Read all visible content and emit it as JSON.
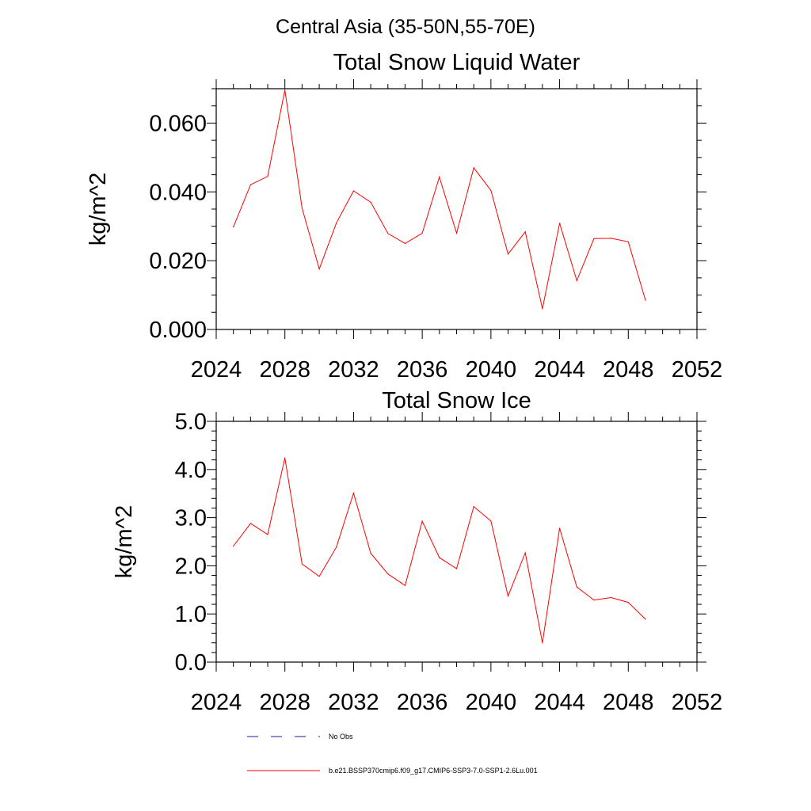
{
  "figure_title": "Central Asia (35-50N,55-70E)",
  "colors": {
    "model": "#ff0000",
    "obs": "#1a1aa0",
    "axes": "#000000"
  },
  "legend": {
    "obs_label": "No Obs",
    "model_label": "b.e21.BSSP370cmip6.f09_g17.CMIP6-SSP3-7.0-SSP1-2.6Lu.001"
  },
  "chart_data": [
    {
      "type": "line",
      "title": "Total Snow Liquid Water",
      "xlabel": "",
      "ylabel": "kg/m^2",
      "xlim": [
        2024,
        2052
      ],
      "ylim": [
        0,
        0.07
      ],
      "xticks": [
        "2024",
        "2028",
        "2032",
        "2036",
        "2040",
        "2044",
        "2048",
        "2052"
      ],
      "yticks": [
        "0.000",
        "0.020",
        "0.040",
        "0.060"
      ],
      "grid": false,
      "series": [
        {
          "name": "b.e21.BSSP370cmip6.f09_g17.CMIP6-SSP3-7.0-SSP1-2.6Lu.001",
          "x": [
            2025,
            2026,
            2027,
            2028,
            2029,
            2030,
            2031,
            2032,
            2033,
            2034,
            2035,
            2036,
            2037,
            2038,
            2039,
            2040,
            2041,
            2042,
            2043,
            2044,
            2045,
            2046,
            2047,
            2048,
            2049
          ],
          "values": [
            0.0298,
            0.0421,
            0.0445,
            0.0696,
            0.0353,
            0.0176,
            0.031,
            0.0403,
            0.037,
            0.0279,
            0.025,
            0.028,
            0.0443,
            0.028,
            0.047,
            0.0404,
            0.0219,
            0.0284,
            0.006,
            0.0309,
            0.0142,
            0.0264,
            0.0265,
            0.0255,
            0.0085
          ]
        }
      ]
    },
    {
      "type": "line",
      "title": "Total Snow Ice",
      "xlabel": "",
      "ylabel": "kg/m^2",
      "xlim": [
        2024,
        2052
      ],
      "ylim": [
        0,
        5
      ],
      "xticks": [
        "2024",
        "2028",
        "2032",
        "2036",
        "2040",
        "2044",
        "2048",
        "2052"
      ],
      "yticks": [
        "0.0",
        "1.0",
        "2.0",
        "3.0",
        "4.0",
        "5.0"
      ],
      "grid": false,
      "series": [
        {
          "name": "b.e21.BSSP370cmip6.f09_g17.CMIP6-SSP3-7.0-SSP1-2.6Lu.001",
          "x": [
            2025,
            2026,
            2027,
            2028,
            2029,
            2030,
            2031,
            2032,
            2033,
            2034,
            2035,
            2036,
            2037,
            2038,
            2039,
            2040,
            2041,
            2042,
            2043,
            2044,
            2045,
            2046,
            2047,
            2048,
            2049
          ],
          "values": [
            2.41,
            2.88,
            2.65,
            4.24,
            2.04,
            1.78,
            2.39,
            3.51,
            2.26,
            1.83,
            1.59,
            2.93,
            2.17,
            1.94,
            3.23,
            2.93,
            1.37,
            2.27,
            0.4,
            2.78,
            1.56,
            1.29,
            1.34,
            1.24,
            0.89
          ]
        }
      ]
    }
  ]
}
